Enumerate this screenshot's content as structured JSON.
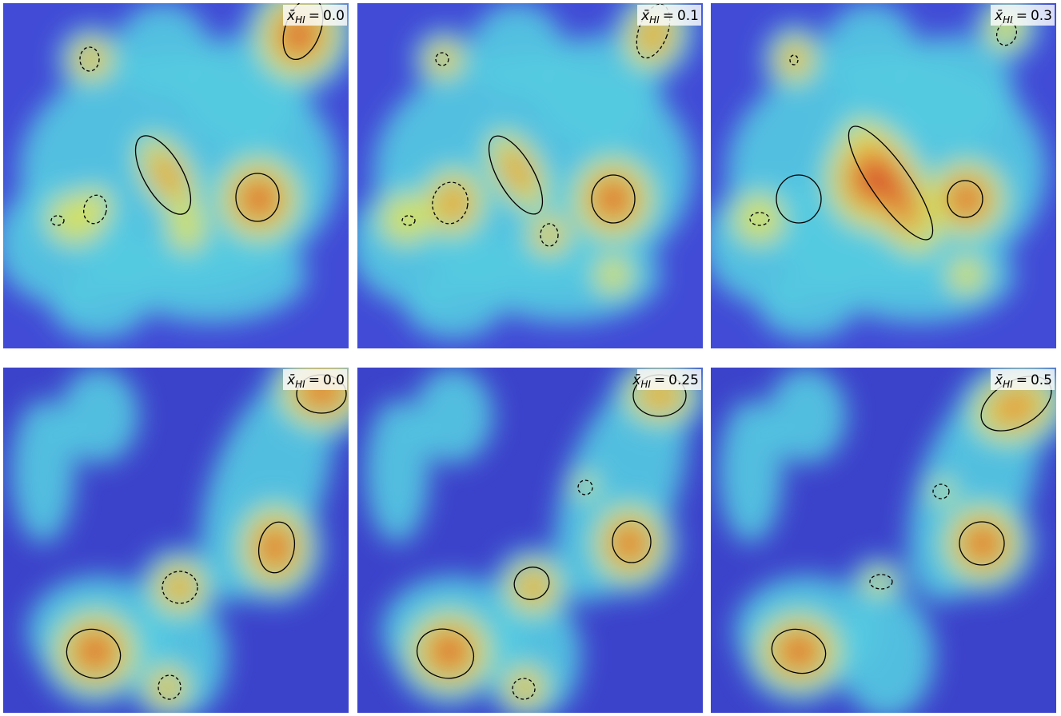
{
  "label": {
    "symbol": "x̄",
    "subscript": "HI",
    "relation": "="
  },
  "panels": [
    {
      "value": "0.0"
    },
    {
      "value": "0.1"
    },
    {
      "value": "0.3"
    },
    {
      "value": "0.0"
    },
    {
      "value": "0.25"
    },
    {
      "value": "0.5"
    }
  ]
}
